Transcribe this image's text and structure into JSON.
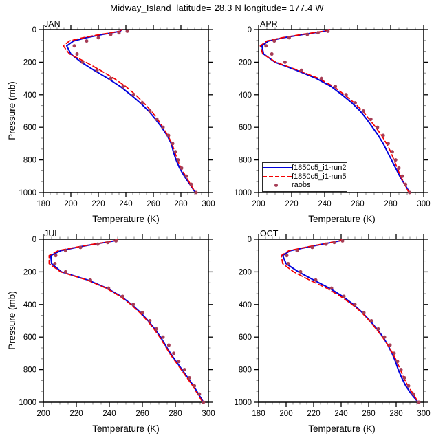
{
  "title": "Midway_Island  latitude= 28.3 N longitude= 177.4 W",
  "colors": {
    "run2": "#0000dd",
    "run5": "#f40000",
    "raobs": "#a63d56",
    "axis": "#000000",
    "minor_tick": "#888888"
  },
  "axis_labels": {
    "x": "Temperature (K)",
    "y": "Pressure (mb)"
  },
  "legend": {
    "entries": [
      {
        "label": "f1850c5_i1-run2",
        "style": "solid-line",
        "color_key": "run2"
      },
      {
        "label": "f1850c5_i1-run5",
        "style": "dashed-line",
        "color_key": "run5"
      },
      {
        "label": "raobs",
        "style": "dot",
        "color_key": "raobs"
      }
    ]
  },
  "chart_data": [
    {
      "type": "line",
      "label": "JAN",
      "xlabel": "Temperature (K)",
      "ylabel": "Pressure (mb)",
      "xlim": [
        180,
        300
      ],
      "ylim": [
        1000,
        0
      ],
      "x_ticks": [
        180,
        200,
        220,
        240,
        260,
        280,
        300
      ],
      "y_ticks": [
        0,
        200,
        400,
        600,
        800,
        1000
      ],
      "x_minor_step": 5,
      "y_minor_per_major": 2,
      "series": [
        {
          "name": "f1850c5_i1-run2",
          "style": "solid",
          "color_key": "run2",
          "pressure": [
            0,
            10,
            20,
            30,
            50,
            70,
            100,
            150,
            200,
            250,
            300,
            350,
            400,
            450,
            500,
            550,
            600,
            650,
            700,
            750,
            800,
            850,
            900,
            950,
            1000
          ],
          "temperature": [
            237,
            236,
            230,
            223,
            211,
            202,
            197,
            200,
            207.5,
            217,
            227,
            236,
            243.5,
            250.5,
            256.5,
            261.5,
            266,
            270,
            273,
            274.5,
            276.5,
            279,
            282.5,
            286.5,
            290.5
          ]
        },
        {
          "name": "f1850c5_i1-run5",
          "style": "dashed",
          "color_key": "run5",
          "pressure": [
            0,
            10,
            20,
            30,
            50,
            70,
            100,
            150,
            200,
            250,
            300,
            350,
            400,
            450,
            500,
            550,
            600,
            650,
            700,
            750,
            800,
            850,
            900,
            950,
            1000
          ],
          "temperature": [
            237,
            235.5,
            229,
            221.5,
            208.5,
            199,
            194.5,
            199,
            211,
            221.5,
            231.5,
            240,
            247,
            253,
            258.5,
            263,
            267,
            270.5,
            273.5,
            275.5,
            277.5,
            280,
            283.5,
            287,
            290.5
          ]
        },
        {
          "name": "raobs",
          "style": "dots",
          "color_key": "raobs",
          "pressure": [
            10,
            20,
            30,
            50,
            70,
            100,
            150,
            200,
            250,
            300,
            350,
            400,
            450,
            500,
            550,
            600,
            650,
            700,
            750,
            800,
            850,
            900,
            950,
            1000
          ],
          "temperature": [
            241,
            235,
            229,
            220,
            211.5,
            202.5,
            204.5,
            208.5,
            219,
            229,
            238,
            245.5,
            252,
            257.5,
            262.5,
            267,
            271,
            274,
            276,
            278,
            280.5,
            284,
            287.5,
            291
          ]
        }
      ]
    },
    {
      "type": "line",
      "label": "APR",
      "xlabel": "Temperature (K)",
      "ylabel": "Pressure (mb)",
      "xlim": [
        200,
        300
      ],
      "ylim": [
        1000,
        0
      ],
      "x_ticks": [
        200,
        220,
        240,
        260,
        280,
        300
      ],
      "y_ticks": [
        0,
        200,
        400,
        600,
        800,
        1000
      ],
      "x_minor_step": 5,
      "y_minor_per_major": 2,
      "has_legend": true,
      "series": [
        {
          "name": "f1850c5_i1-run2",
          "style": "solid",
          "color_key": "run2",
          "pressure": [
            0,
            10,
            20,
            30,
            50,
            70,
            100,
            150,
            200,
            250,
            300,
            350,
            400,
            450,
            500,
            550,
            600,
            650,
            700,
            750,
            800,
            850,
            900,
            950,
            1000
          ],
          "temperature": [
            243,
            240,
            233.5,
            227,
            215,
            206,
            202,
            203,
            210,
            223,
            235,
            244,
            250.5,
            256.5,
            261.5,
            265.5,
            269,
            272.5,
            275.5,
            278,
            280.5,
            283,
            285.5,
            288.5,
            291.5
          ]
        },
        {
          "name": "f1850c5_i1-run5",
          "style": "dashed",
          "color_key": "run5",
          "pressure": [
            0,
            10,
            20,
            30,
            50,
            70,
            100,
            150,
            200,
            250,
            300,
            350,
            400,
            450,
            500,
            550,
            600,
            650,
            700,
            750,
            800,
            850,
            900,
            950,
            1000
          ],
          "temperature": [
            243,
            239.5,
            233,
            226,
            214,
            205,
            201,
            202.5,
            210.5,
            224,
            236.5,
            245.5,
            252,
            258,
            263,
            267,
            271,
            274.5,
            277.5,
            280,
            282,
            284,
            286,
            288.5,
            291
          ]
        },
        {
          "name": "raobs",
          "style": "dots",
          "color_key": "raobs",
          "pressure": [
            10,
            20,
            30,
            50,
            70,
            100,
            150,
            200,
            250,
            300,
            350,
            400,
            450,
            500,
            550,
            600,
            650,
            700,
            750,
            800,
            850,
            900,
            950,
            1000
          ],
          "temperature": [
            242,
            236,
            229.5,
            218.5,
            209.5,
            204.5,
            208,
            216,
            226,
            238,
            246.5,
            253,
            258.5,
            263.5,
            268,
            272,
            275.5,
            278.5,
            281,
            283,
            285,
            287,
            289,
            291.5
          ]
        }
      ]
    },
    {
      "type": "line",
      "label": "JUL",
      "xlabel": "Temperature (K)",
      "ylabel": "Pressure (mb)",
      "xlim": [
        200,
        300
      ],
      "ylim": [
        1000,
        0
      ],
      "x_ticks": [
        200,
        220,
        240,
        260,
        280,
        300
      ],
      "y_ticks": [
        0,
        200,
        400,
        600,
        800,
        1000
      ],
      "x_minor_step": 5,
      "y_minor_per_major": 2,
      "series": [
        {
          "name": "f1850c5_i1-run2",
          "style": "solid",
          "color_key": "run2",
          "pressure": [
            0,
            10,
            20,
            30,
            50,
            70,
            100,
            150,
            200,
            250,
            300,
            350,
            400,
            450,
            500,
            550,
            600,
            650,
            700,
            750,
            800,
            850,
            900,
            950,
            1000
          ],
          "temperature": [
            245,
            243,
            237.5,
            231,
            220,
            210.5,
            204.5,
            205,
            211,
            227,
            238.5,
            247,
            253.5,
            259,
            263.5,
            267.5,
            271,
            274,
            277,
            280.5,
            284,
            287.5,
            291,
            294,
            297
          ]
        },
        {
          "name": "f1850c5_i1-run5",
          "style": "dashed",
          "color_key": "run5",
          "pressure": [
            0,
            10,
            20,
            30,
            50,
            70,
            100,
            150,
            200,
            250,
            300,
            350,
            400,
            450,
            500,
            550,
            600,
            650,
            700,
            750,
            800,
            850,
            900,
            950,
            1000
          ],
          "temperature": [
            245,
            242.5,
            237,
            230.5,
            219,
            209,
            203.5,
            203.5,
            210.5,
            226.5,
            238,
            246.5,
            253,
            258.5,
            263,
            267,
            270.5,
            273.5,
            276.5,
            280,
            283.5,
            287,
            290.5,
            293.5,
            296.5
          ]
        },
        {
          "name": "raobs",
          "style": "dots",
          "color_key": "raobs",
          "pressure": [
            10,
            20,
            30,
            50,
            70,
            100,
            150,
            200,
            250,
            300,
            350,
            400,
            450,
            500,
            550,
            600,
            650,
            700,
            750,
            800,
            850,
            900,
            950,
            1000
          ],
          "temperature": [
            244,
            239,
            233,
            222.5,
            213.5,
            207.5,
            207,
            213.5,
            228.5,
            239.5,
            248,
            254.5,
            260,
            264.5,
            268.5,
            272.5,
            276,
            279,
            282,
            285.5,
            288.5,
            291.5,
            294.5,
            297
          ]
        }
      ]
    },
    {
      "type": "line",
      "label": "OCT",
      "xlabel": "Temperature (K)",
      "ylabel": "Pressure (mb)",
      "xlim": [
        180,
        300
      ],
      "ylim": [
        1000,
        0
      ],
      "x_ticks": [
        180,
        200,
        220,
        240,
        260,
        280,
        300
      ],
      "y_ticks": [
        0,
        200,
        400,
        600,
        800,
        1000
      ],
      "x_minor_step": 5,
      "y_minor_per_major": 2,
      "series": [
        {
          "name": "f1850c5_i1-run2",
          "style": "solid",
          "color_key": "run2",
          "pressure": [
            0,
            10,
            20,
            30,
            50,
            70,
            100,
            150,
            200,
            250,
            300,
            350,
            400,
            450,
            500,
            550,
            600,
            650,
            700,
            750,
            800,
            850,
            900,
            950,
            1000
          ],
          "temperature": [
            241,
            239,
            233,
            226.5,
            214.5,
            203,
            197.5,
            200,
            209,
            220,
            231.5,
            241,
            249,
            255.5,
            261,
            266,
            270.5,
            274,
            277,
            279.5,
            281.5,
            284,
            287,
            291,
            296
          ]
        },
        {
          "name": "f1850c5_i1-run5",
          "style": "dashed",
          "color_key": "run5",
          "pressure": [
            0,
            10,
            20,
            30,
            50,
            70,
            100,
            150,
            200,
            250,
            300,
            350,
            400,
            450,
            500,
            550,
            600,
            650,
            700,
            750,
            800,
            850,
            900,
            950,
            1000
          ],
          "temperature": [
            241,
            238.5,
            232.5,
            226,
            213.5,
            202,
            196.5,
            197.5,
            205.5,
            217,
            229.5,
            239.5,
            248,
            255,
            260.5,
            265.5,
            270,
            274,
            277.5,
            280.5,
            283,
            285.5,
            288.5,
            292.5,
            296
          ]
        },
        {
          "name": "raobs",
          "style": "dots",
          "color_key": "raobs",
          "pressure": [
            10,
            20,
            30,
            50,
            70,
            100,
            150,
            200,
            250,
            300,
            350,
            400,
            450,
            500,
            550,
            600,
            650,
            700,
            750,
            800,
            850,
            900,
            950,
            1000
          ],
          "temperature": [
            241,
            235,
            229,
            219,
            208,
            200.5,
            201.5,
            210.5,
            221.5,
            233,
            242,
            250,
            256.5,
            262,
            267,
            271.5,
            275.5,
            278.5,
            281,
            283.5,
            286,
            289,
            292.5,
            296.5
          ]
        }
      ]
    }
  ]
}
